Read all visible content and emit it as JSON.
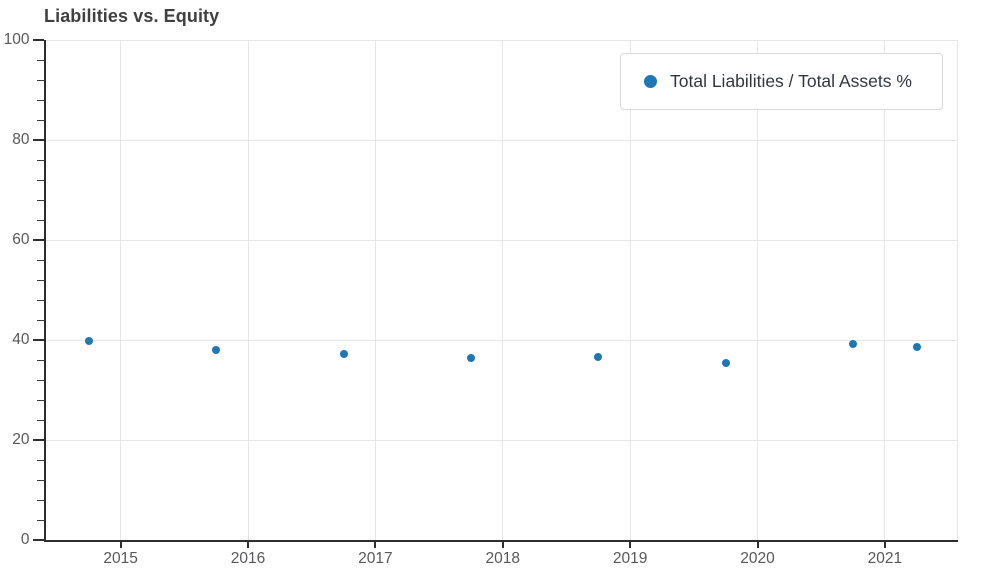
{
  "colors": {
    "series_blue": "#1f77b4",
    "axis": "#2e2e2e",
    "grid": "#e6e6e6",
    "tick_label": "#58585a",
    "title_text": "#404040",
    "legend_border": "#d9d9d9",
    "background": "#ffffff"
  },
  "chart_data": {
    "type": "scatter",
    "title": "Liabilities vs. Equity",
    "xlabel": "",
    "ylabel": "",
    "series": [
      {
        "name": "Total Liabilities / Total Assets %",
        "color": "#1f77b4",
        "points": [
          {
            "x": 2014.75,
            "y": 39.8
          },
          {
            "x": 2015.75,
            "y": 38.0
          },
          {
            "x": 2016.75,
            "y": 37.2
          },
          {
            "x": 2017.75,
            "y": 36.4
          },
          {
            "x": 2018.75,
            "y": 36.7
          },
          {
            "x": 2019.75,
            "y": 35.4
          },
          {
            "x": 2020.75,
            "y": 39.2
          },
          {
            "x": 2021.25,
            "y": 38.6
          }
        ]
      }
    ],
    "xlim": [
      2014.41,
      2021.57
    ],
    "ylim": [
      0,
      100
    ],
    "x_ticks": [
      2015,
      2016,
      2017,
      2018,
      2019,
      2020,
      2021
    ],
    "y_ticks": [
      0,
      20,
      40,
      60,
      80,
      100
    ],
    "y_minor_tick_step": 4,
    "grid": true,
    "legend_position": "top-right"
  }
}
